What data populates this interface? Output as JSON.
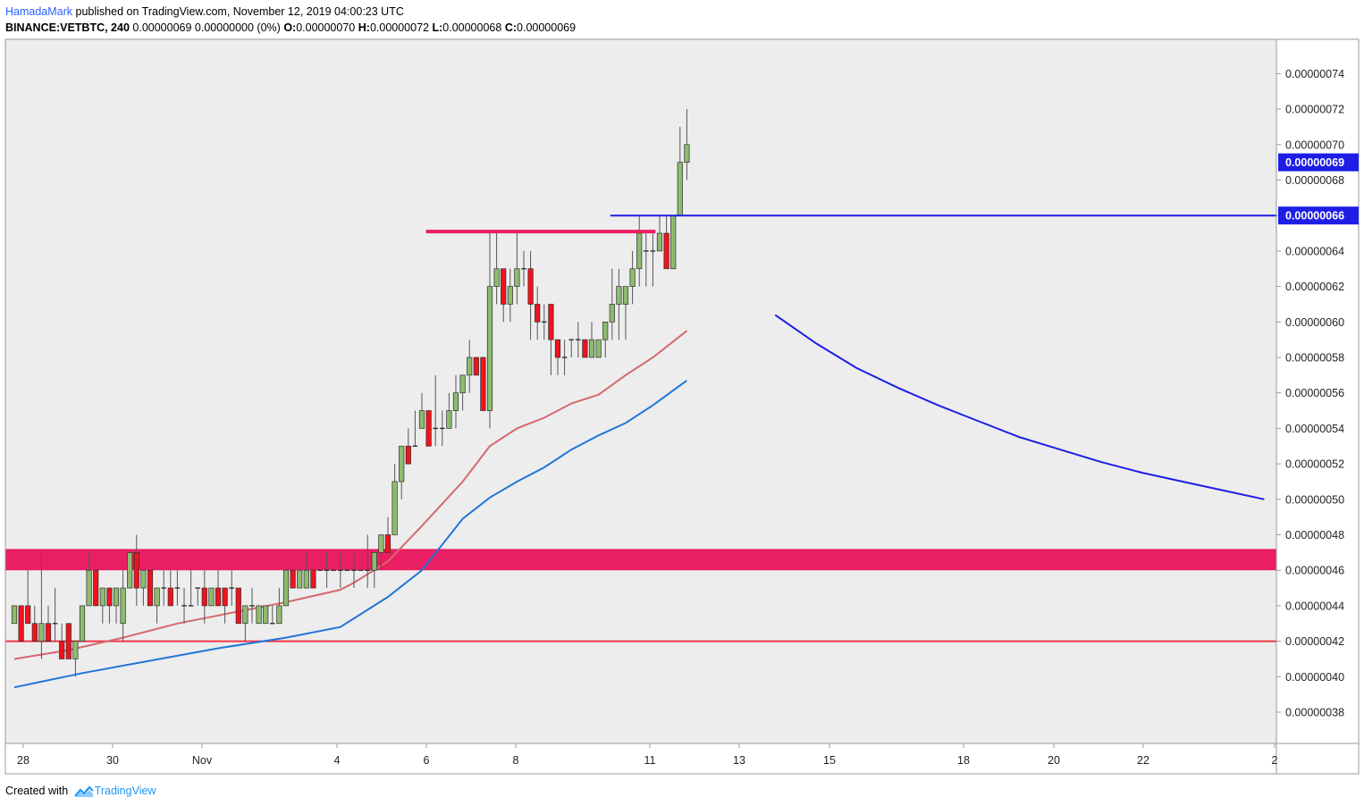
{
  "header": {
    "author": "HamadaMark",
    "published": "published on TradingView.com, November 12, 2019 04:00:23 UTC",
    "symbol": "BINANCE:VETBTC, 240",
    "quote": "0.00000069 0.00000000 (0%)",
    "o_label": "O:",
    "o_value": "0.00000070",
    "h_label": "H:",
    "h_value": "0.00000072",
    "l_label": "L:",
    "l_value": "0.00000068",
    "c_label": "C:",
    "c_value": "0.00000069"
  },
  "footer": {
    "created_with": "Created with",
    "brand": "TradingView"
  },
  "colors": {
    "up": "#8dbb6f",
    "down": "#f0121c",
    "candle_border": "#2f2f2f",
    "zone": "#e91e63",
    "support": "#f23645",
    "resistance_line": "#1e1ee6",
    "ema_fast": "#d5696e",
    "ema_slow": "#2176d8",
    "projection": "#1e1ee6",
    "chart_bg": "#ededed",
    "axis_label_bg": "#1e1ee6"
  },
  "chart_data": {
    "type": "candlestick",
    "title": "BINANCE:VETBTC, 240",
    "x_axis": {
      "tick_labels": [
        "28",
        "30",
        "Nov",
        "4",
        "6",
        "8",
        "11",
        "13",
        "15",
        "18",
        "20",
        "22",
        "2"
      ]
    },
    "y_axis": {
      "range": [
        3.6e-07,
        7.6e-07
      ],
      "tick_values": [
        3.8e-07,
        4e-07,
        4.2e-07,
        4.4e-07,
        4.6e-07,
        4.8e-07,
        5e-07,
        5.2e-07,
        5.4e-07,
        5.6e-07,
        5.8e-07,
        6e-07,
        6.2e-07,
        6.4e-07,
        6.6e-07,
        6.8e-07,
        7e-07,
        7.2e-07,
        7.4e-07
      ],
      "tick_labels": [
        "0.00000038",
        "0.00000040",
        "0.00000042",
        "0.00000044",
        "0.00000046",
        "0.00000048",
        "0.00000050",
        "0.00000052",
        "0.00000054",
        "0.00000056",
        "0.00000058",
        "0.00000060",
        "0.00000062",
        "0.00000064",
        "0.00000066",
        "0.00000068",
        "0.00000070",
        "0.00000072",
        "0.00000074"
      ],
      "price_labels": [
        {
          "value": 6.9e-07,
          "text": "0.00000069"
        },
        {
          "value": 6.6e-07,
          "text": "0.00000066"
        }
      ]
    },
    "candles": [
      [
        43,
        44,
        43,
        44
      ],
      [
        44,
        44,
        42,
        42
      ],
      [
        44,
        46,
        43,
        43
      ],
      [
        43,
        44,
        42,
        42
      ],
      [
        42,
        47,
        41,
        43
      ],
      [
        43,
        44,
        42,
        42
      ],
      [
        43,
        45,
        42,
        43
      ],
      [
        42,
        43,
        41,
        41
      ],
      [
        43,
        43,
        41,
        41
      ],
      [
        41,
        42,
        40,
        42
      ],
      [
        42,
        44,
        42,
        44
      ],
      [
        44,
        47,
        44,
        46
      ],
      [
        46,
        46,
        44,
        44
      ],
      [
        44,
        45,
        43,
        45
      ],
      [
        45,
        45,
        43,
        44
      ],
      [
        44,
        45,
        43,
        45
      ],
      [
        43,
        46,
        42,
        45
      ],
      [
        45,
        47,
        45,
        47
      ],
      [
        47,
        48,
        44,
        45
      ],
      [
        45,
        46,
        44,
        46
      ],
      [
        46,
        46,
        44,
        44
      ],
      [
        44,
        45,
        43,
        45
      ],
      [
        45,
        46,
        44,
        45
      ],
      [
        45,
        46,
        44,
        44
      ],
      [
        45,
        46,
        44,
        45
      ],
      [
        44,
        45,
        43,
        44
      ],
      [
        44,
        46,
        44,
        44
      ],
      [
        45,
        45,
        44,
        45
      ],
      [
        45,
        46,
        43,
        44
      ],
      [
        44,
        45,
        44,
        45
      ],
      [
        45,
        46,
        44,
        44
      ],
      [
        45,
        45,
        43,
        44
      ],
      [
        45,
        46,
        44,
        45
      ],
      [
        45,
        45,
        43,
        43
      ],
      [
        43,
        44,
        42,
        44
      ],
      [
        44,
        45,
        43,
        44
      ],
      [
        43,
        44,
        43,
        44
      ],
      [
        43,
        44,
        43,
        44
      ],
      [
        43,
        44,
        43,
        43
      ],
      [
        43,
        45,
        43,
        44
      ],
      [
        44,
        46,
        44,
        46
      ],
      [
        46,
        46,
        45,
        45
      ],
      [
        45,
        46,
        45,
        46
      ],
      [
        45,
        47,
        45,
        46
      ],
      [
        46,
        46,
        45,
        45
      ],
      [
        46,
        46,
        46,
        46
      ],
      [
        46,
        47,
        45,
        46
      ],
      [
        46,
        46,
        46,
        46
      ],
      [
        46,
        47,
        45,
        46
      ],
      [
        46,
        46,
        46,
        46
      ],
      [
        46,
        47,
        45,
        46
      ],
      [
        46,
        46,
        46,
        46
      ],
      [
        46,
        48,
        45,
        46
      ],
      [
        46,
        47,
        45,
        47
      ],
      [
        47,
        48,
        46,
        48
      ],
      [
        48,
        49,
        47,
        47
      ],
      [
        48,
        52,
        48,
        51
      ],
      [
        51,
        53,
        50,
        53
      ],
      [
        53,
        54,
        52,
        52
      ],
      [
        53,
        55,
        53,
        53
      ],
      [
        54,
        56,
        54,
        55
      ],
      [
        55,
        55,
        53,
        53
      ],
      [
        54,
        57,
        53,
        54
      ],
      [
        54,
        55,
        53,
        54
      ],
      [
        54,
        56,
        54,
        55
      ],
      [
        55,
        57,
        54,
        56
      ],
      [
        56,
        57,
        55,
        57
      ],
      [
        57,
        59,
        56,
        58
      ],
      [
        58,
        58,
        57,
        57
      ],
      [
        58,
        58,
        55,
        55
      ],
      [
        55,
        65,
        54,
        62
      ],
      [
        62,
        65,
        61,
        63
      ],
      [
        63,
        63,
        60,
        61
      ],
      [
        61,
        63,
        60,
        62
      ],
      [
        62,
        65,
        61,
        63
      ],
      [
        63,
        64,
        62,
        63
      ],
      [
        63,
        64,
        59,
        61
      ],
      [
        61,
        62,
        59,
        60
      ],
      [
        60,
        61,
        59,
        60
      ],
      [
        61,
        61,
        57,
        59
      ],
      [
        59,
        59,
        57,
        58
      ],
      [
        58,
        59,
        57,
        58
      ],
      [
        59,
        59,
        58,
        59
      ],
      [
        59,
        60,
        58,
        59
      ],
      [
        59,
        59,
        58,
        58
      ],
      [
        58,
        60,
        58,
        59
      ],
      [
        58,
        59,
        58,
        59
      ],
      [
        59,
        60,
        58,
        60
      ],
      [
        60,
        63,
        59,
        61
      ],
      [
        61,
        63,
        59,
        62
      ],
      [
        61,
        62,
        59,
        62
      ],
      [
        62,
        64,
        61,
        63
      ],
      [
        63,
        66,
        62,
        65
      ],
      [
        64,
        65,
        62,
        64
      ],
      [
        64,
        65,
        62,
        64
      ],
      [
        64,
        66,
        64,
        65
      ],
      [
        65,
        66,
        63,
        63
      ],
      [
        63,
        66,
        63,
        66
      ],
      [
        66,
        71,
        66,
        69
      ],
      [
        69,
        72,
        68,
        70
      ]
    ],
    "candle_scale": 1e-08,
    "ema_fast": {
      "name": "EMA fast",
      "values": [
        [
          0,
          41.0
        ],
        [
          8,
          41.5
        ],
        [
          16,
          42.2
        ],
        [
          24,
          43.0
        ],
        [
          32,
          43.6
        ],
        [
          40,
          44.2
        ],
        [
          48,
          44.9
        ],
        [
          50,
          45.3
        ],
        [
          55,
          46.5
        ],
        [
          60,
          48.5
        ],
        [
          66,
          51.0
        ],
        [
          70,
          53.0
        ],
        [
          74,
          54.0
        ],
        [
          78,
          54.6
        ],
        [
          82,
          55.4
        ],
        [
          86,
          55.9
        ],
        [
          90,
          57.0
        ],
        [
          94,
          58.0
        ],
        [
          99,
          59.5
        ]
      ]
    },
    "ema_slow": {
      "name": "EMA slow",
      "values": [
        [
          0,
          39.4
        ],
        [
          10,
          40.2
        ],
        [
          20,
          40.9
        ],
        [
          30,
          41.6
        ],
        [
          40,
          42.2
        ],
        [
          48,
          42.8
        ],
        [
          55,
          44.5
        ],
        [
          60,
          46.0
        ],
        [
          66,
          48.9
        ],
        [
          70,
          50.1
        ],
        [
          74,
          51.0
        ],
        [
          78,
          51.8
        ],
        [
          82,
          52.8
        ],
        [
          86,
          53.6
        ],
        [
          90,
          54.3
        ],
        [
          94,
          55.3
        ],
        [
          99,
          56.7
        ]
      ]
    },
    "resistance_zone": {
      "low": 4.6e-07,
      "high": 4.72e-07
    },
    "support_line": {
      "value": 4.2e-07
    },
    "resistance_short": {
      "value": 6.51e-07,
      "from": 61,
      "to": 94
    },
    "breakout_line": {
      "value": 6.6e-07,
      "from": 88
    },
    "projection_curve": {
      "points": [
        [
          112,
          60.4
        ],
        [
          118,
          58.8
        ],
        [
          124,
          57.4
        ],
        [
          130,
          56.3
        ],
        [
          136,
          55.3
        ],
        [
          142,
          54.4
        ],
        [
          148,
          53.5
        ],
        [
          154,
          52.8
        ],
        [
          160,
          52.1
        ],
        [
          166,
          51.5
        ],
        [
          172,
          51.0
        ],
        [
          178,
          50.5
        ],
        [
          184,
          50.0
        ]
      ]
    }
  }
}
